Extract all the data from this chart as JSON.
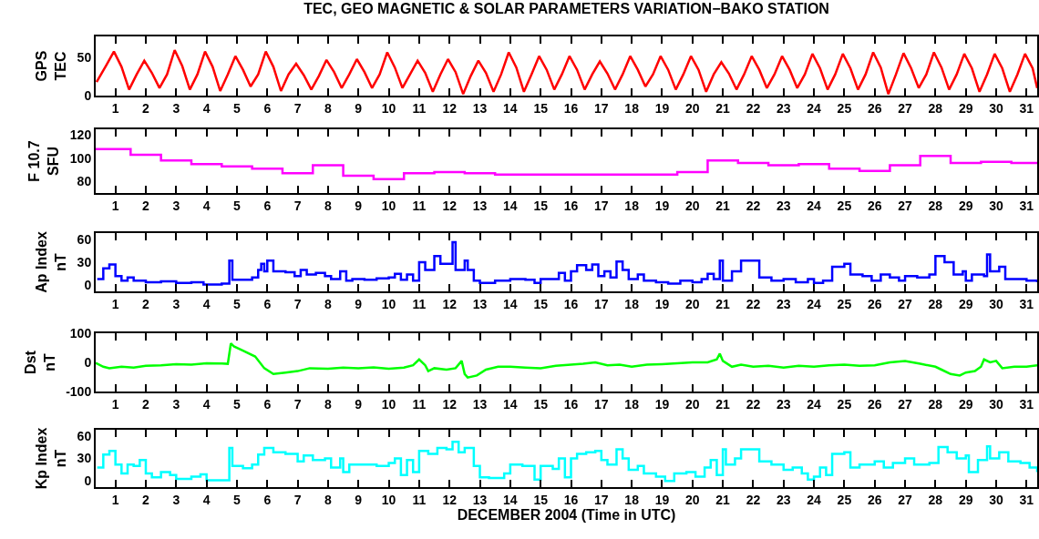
{
  "chart_data": [
    {
      "type": "line",
      "title": "TEC, GEO MAGNETIC & SOLAR PARAMETERS VARIATION−BAKO STATION",
      "ylabel": "GPS\nTEC",
      "xlim": [
        0.35,
        31.35
      ],
      "xticks": [
        1,
        2,
        3,
        4,
        5,
        6,
        7,
        8,
        9,
        10,
        11,
        12,
        13,
        14,
        15,
        16,
        17,
        18,
        19,
        20,
        21,
        22,
        23,
        24,
        25,
        26,
        27,
        28,
        29,
        30,
        31
      ],
      "ylim": [
        0,
        78
      ],
      "yticks": [
        0,
        50
      ],
      "x": [
        0.38,
        0.7,
        0.95,
        1.2,
        1.45,
        1.7,
        1.95,
        2.2,
        2.45,
        2.7,
        2.95,
        3.2,
        3.45,
        3.7,
        3.95,
        4.2,
        4.45,
        4.7,
        4.95,
        5.2,
        5.45,
        5.7,
        5.95,
        6.2,
        6.45,
        6.7,
        6.95,
        7.2,
        7.45,
        7.7,
        7.95,
        8.2,
        8.45,
        8.7,
        8.95,
        9.2,
        9.45,
        9.7,
        9.95,
        10.2,
        10.45,
        10.7,
        10.95,
        11.2,
        11.45,
        11.7,
        11.95,
        12.2,
        12.45,
        12.7,
        12.95,
        13.2,
        13.45,
        13.7,
        13.95,
        14.2,
        14.45,
        14.7,
        14.95,
        15.2,
        15.45,
        15.7,
        15.95,
        16.2,
        16.45,
        16.7,
        16.95,
        17.2,
        17.45,
        17.7,
        17.95,
        18.2,
        18.45,
        18.7,
        18.95,
        19.2,
        19.45,
        19.7,
        19.95,
        20.2,
        20.45,
        20.7,
        20.95,
        21.2,
        21.45,
        21.7,
        21.95,
        22.2,
        22.45,
        22.7,
        22.95,
        23.2,
        23.45,
        23.7,
        23.95,
        24.2,
        24.45,
        24.7,
        24.95,
        25.2,
        25.45,
        25.7,
        25.95,
        26.2,
        26.45,
        26.7,
        26.95,
        27.2,
        27.45,
        27.7,
        27.95,
        28.2,
        28.45,
        28.7,
        28.95,
        29.2,
        29.45,
        29.7,
        29.95,
        30.2,
        30.45,
        30.7,
        30.95,
        31.2,
        31.35
      ],
      "series": [
        {
          "color": "#ff0000",
          "values": [
            18,
            40,
            58,
            38,
            8,
            28,
            46,
            30,
            10,
            28,
            60,
            39,
            8,
            28,
            58,
            38,
            6,
            28,
            52,
            34,
            12,
            28,
            58,
            38,
            6,
            28,
            42,
            27,
            8,
            26,
            47,
            31,
            10,
            28,
            48,
            31,
            10,
            28,
            57,
            37,
            10,
            28,
            46,
            30,
            5,
            28,
            48,
            31,
            2,
            26,
            46,
            30,
            5,
            28,
            57,
            37,
            5,
            28,
            52,
            34,
            8,
            28,
            52,
            34,
            8,
            28,
            45,
            29,
            8,
            28,
            52,
            34,
            12,
            28,
            52,
            34,
            8,
            28,
            52,
            34,
            5,
            28,
            44,
            29,
            8,
            28,
            52,
            34,
            10,
            28,
            52,
            34,
            10,
            28,
            55,
            36,
            8,
            28,
            55,
            36,
            8,
            28,
            57,
            37,
            2,
            28,
            56,
            36,
            10,
            28,
            57,
            37,
            8,
            28,
            55,
            36,
            5,
            28,
            55,
            36,
            5,
            28,
            55,
            36,
            10
          ]
        }
      ]
    },
    {
      "type": "step",
      "ylabel": "F 10.7\nSFU",
      "xlim": [
        0.35,
        31.35
      ],
      "xticks": [
        1,
        2,
        3,
        4,
        5,
        6,
        7,
        8,
        9,
        10,
        11,
        12,
        13,
        14,
        15,
        16,
        17,
        18,
        19,
        20,
        21,
        22,
        23,
        24,
        25,
        26,
        27,
        28,
        29,
        30,
        31
      ],
      "ylim": [
        70,
        125
      ],
      "yticks": [
        80,
        100,
        120
      ],
      "x": [
        0.35,
        1.5,
        2.5,
        3.5,
        4.5,
        5.5,
        6.5,
        7.5,
        8.5,
        9.5,
        10.5,
        11.5,
        12.5,
        13.5,
        14.5,
        15.5,
        16.5,
        17.5,
        18.5,
        19.5,
        20.5,
        21.5,
        22.5,
        23.5,
        24.5,
        25.5,
        26.5,
        27.5,
        28.5,
        29.5,
        30.5,
        31.35
      ],
      "series": [
        {
          "color": "#ff00ff",
          "values": [
            108,
            103,
            98,
            95,
            93,
            91,
            87,
            94,
            85,
            82,
            87,
            88,
            87,
            86,
            86,
            86,
            86,
            86,
            86,
            88,
            98,
            96,
            94,
            95,
            91,
            89,
            94,
            102,
            96,
            97,
            96,
            96
          ]
        }
      ]
    },
    {
      "type": "step",
      "ylabel": "Ap Index\nnT",
      "xlim": [
        0.35,
        31.35
      ],
      "xticks": [
        1,
        2,
        3,
        4,
        5,
        6,
        7,
        8,
        9,
        10,
        11,
        12,
        13,
        14,
        15,
        16,
        17,
        18,
        19,
        20,
        21,
        22,
        23,
        24,
        25,
        26,
        27,
        28,
        29,
        30,
        31
      ],
      "ylim": [
        -8,
        68
      ],
      "yticks": [
        0,
        30,
        60
      ],
      "x": [
        0.4,
        0.6,
        0.8,
        1.0,
        1.2,
        1.4,
        1.6,
        2.0,
        2.5,
        3.0,
        3.5,
        3.9,
        4.5,
        4.75,
        4.85,
        5.2,
        5.5,
        5.7,
        5.8,
        5.9,
        6.0,
        6.2,
        6.6,
        6.9,
        7.1,
        7.3,
        7.6,
        7.9,
        8.1,
        8.4,
        8.6,
        8.8,
        9.2,
        9.6,
        10.0,
        10.2,
        10.4,
        10.6,
        10.8,
        11.0,
        11.2,
        11.5,
        11.7,
        12.0,
        12.1,
        12.2,
        12.5,
        12.6,
        12.8,
        13.0,
        13.5,
        14.0,
        14.5,
        14.8,
        15.0,
        15.4,
        15.6,
        15.8,
        16.0,
        16.2,
        16.5,
        16.7,
        16.9,
        17.1,
        17.3,
        17.5,
        17.7,
        17.9,
        18.2,
        18.4,
        18.8,
        19.2,
        19.6,
        20.0,
        20.3,
        20.5,
        20.7,
        20.9,
        21.0,
        21.3,
        21.6,
        22.0,
        22.2,
        22.6,
        23.0,
        23.4,
        23.8,
        24.0,
        24.3,
        24.6,
        25.0,
        25.2,
        25.6,
        25.9,
        26.2,
        26.5,
        26.8,
        27.0,
        27.4,
        27.8,
        28.0,
        28.3,
        28.6,
        28.9,
        29.0,
        29.2,
        29.6,
        29.7,
        29.8,
        30.1,
        30.3,
        30.7,
        31.0,
        31.35
      ],
      "series": [
        {
          "color": "#0000ff",
          "values": [
            8,
            22,
            27,
            12,
            6,
            10,
            6,
            4,
            5,
            3,
            4,
            1,
            2,
            32,
            7,
            7,
            10,
            20,
            28,
            18,
            32,
            18,
            17,
            12,
            20,
            14,
            16,
            12,
            8,
            18,
            6,
            8,
            7,
            9,
            10,
            15,
            7,
            14,
            6,
            30,
            20,
            38,
            28,
            28,
            56,
            20,
            32,
            20,
            6,
            3,
            6,
            8,
            7,
            3,
            8,
            8,
            16,
            6,
            18,
            26,
            20,
            27,
            12,
            18,
            10,
            31,
            20,
            8,
            14,
            6,
            4,
            2,
            6,
            4,
            8,
            15,
            8,
            32,
            6,
            18,
            32,
            32,
            10,
            6,
            8,
            4,
            8,
            3,
            6,
            24,
            28,
            14,
            12,
            6,
            14,
            10,
            6,
            12,
            10,
            14,
            38,
            30,
            14,
            18,
            6,
            14,
            12,
            40,
            18,
            24,
            8,
            8,
            6,
            4
          ]
        }
      ]
    },
    {
      "type": "line",
      "ylabel": "Dst\nnT",
      "xlim": [
        0.35,
        31.35
      ],
      "xticks": [
        1,
        2,
        3,
        4,
        5,
        6,
        7,
        8,
        9,
        10,
        11,
        12,
        13,
        14,
        15,
        16,
        17,
        18,
        19,
        20,
        21,
        22,
        23,
        24,
        25,
        26,
        27,
        28,
        29,
        30,
        31
      ],
      "ylim": [
        -100,
        100
      ],
      "yticks": [
        -100,
        0,
        100
      ],
      "x": [
        0.35,
        0.6,
        0.8,
        1.2,
        1.6,
        2.0,
        2.5,
        3.0,
        3.5,
        4.0,
        4.5,
        4.7,
        4.8,
        4.9,
        5.2,
        5.6,
        5.9,
        6.2,
        6.6,
        7.0,
        7.4,
        8.0,
        8.5,
        9.0,
        9.5,
        10.0,
        10.5,
        10.8,
        11.0,
        11.2,
        11.3,
        11.5,
        11.9,
        12.2,
        12.4,
        12.5,
        12.6,
        12.9,
        13.2,
        13.6,
        14.0,
        14.5,
        15.0,
        15.5,
        16.0,
        16.4,
        16.8,
        17.2,
        17.6,
        18.0,
        18.5,
        19.0,
        19.5,
        20.0,
        20.5,
        20.8,
        20.9,
        21.0,
        21.3,
        21.6,
        22.0,
        22.5,
        23.0,
        23.5,
        24.0,
        24.5,
        25.0,
        25.5,
        26.0,
        26.5,
        27.0,
        27.5,
        28.0,
        28.2,
        28.5,
        28.8,
        29.0,
        29.3,
        29.5,
        29.6,
        29.8,
        30.0,
        30.2,
        30.6,
        31.0,
        31.35
      ],
      "series": [
        {
          "color": "#00ff00",
          "values": [
            -2,
            -15,
            -20,
            -15,
            -18,
            -12,
            -10,
            -6,
            -8,
            -3,
            -4,
            -5,
            65,
            55,
            40,
            20,
            -20,
            -40,
            -35,
            -30,
            -20,
            -22,
            -18,
            -20,
            -17,
            -22,
            -18,
            -10,
            10,
            -10,
            -30,
            -20,
            -25,
            -20,
            5,
            -40,
            -52,
            -45,
            -25,
            -15,
            -15,
            -18,
            -20,
            -12,
            -8,
            -5,
            0,
            -10,
            -8,
            -15,
            -8,
            -6,
            -3,
            0,
            0,
            10,
            30,
            5,
            -15,
            -8,
            -15,
            -12,
            -18,
            -12,
            -15,
            -10,
            -8,
            -12,
            -10,
            0,
            5,
            -5,
            -15,
            -25,
            -40,
            -45,
            -35,
            -30,
            -15,
            10,
            0,
            5,
            -20,
            -15,
            -15,
            -10
          ]
        }
      ]
    },
    {
      "type": "step",
      "ylabel": "Kp Index\nnT",
      "xlabel": "DECEMBER 2004 (Time in UTC)",
      "xlim": [
        0.35,
        31.35
      ],
      "xticks": [
        1,
        2,
        3,
        4,
        5,
        6,
        7,
        8,
        9,
        10,
        11,
        12,
        13,
        14,
        15,
        16,
        17,
        18,
        19,
        20,
        21,
        22,
        23,
        24,
        25,
        26,
        27,
        28,
        29,
        30,
        31
      ],
      "ylim": [
        -8,
        68
      ],
      "yticks": [
        0,
        30,
        60
      ],
      "x": [
        0.4,
        0.6,
        0.8,
        1.0,
        1.2,
        1.4,
        1.6,
        1.8,
        2.0,
        2.2,
        2.5,
        2.8,
        3.0,
        3.5,
        3.8,
        4.0,
        4.6,
        4.75,
        4.85,
        5.2,
        5.5,
        5.7,
        5.9,
        6.2,
        6.6,
        7.0,
        7.2,
        7.5,
        7.9,
        8.1,
        8.4,
        8.5,
        8.7,
        9.2,
        9.6,
        10.0,
        10.2,
        10.4,
        10.6,
        10.8,
        11.0,
        11.3,
        11.6,
        11.9,
        12.1,
        12.3,
        12.5,
        12.8,
        13.0,
        13.3,
        13.8,
        14.0,
        14.4,
        14.8,
        15.0,
        15.4,
        15.6,
        15.8,
        16.0,
        16.2,
        16.5,
        16.8,
        17.0,
        17.2,
        17.5,
        17.7,
        17.9,
        18.2,
        18.4,
        18.8,
        19.1,
        19.4,
        19.8,
        20.1,
        20.4,
        20.6,
        20.8,
        21.0,
        21.1,
        21.4,
        21.6,
        22.0,
        22.2,
        22.6,
        23.0,
        23.3,
        23.6,
        23.8,
        24.0,
        24.2,
        24.4,
        24.6,
        25.0,
        25.2,
        25.5,
        26.0,
        26.3,
        26.6,
        27.0,
        27.3,
        27.8,
        28.1,
        28.4,
        28.7,
        29.0,
        29.1,
        29.4,
        29.7,
        29.8,
        30.1,
        30.4,
        30.8,
        31.1,
        31.35
      ],
      "series": [
        {
          "color": "#00ffff",
          "values": [
            18,
            35,
            40,
            22,
            10,
            22,
            20,
            28,
            10,
            5,
            12,
            8,
            3,
            6,
            9,
            1,
            1,
            44,
            20,
            17,
            22,
            35,
            44,
            38,
            36,
            26,
            34,
            28,
            30,
            18,
            30,
            12,
            22,
            22,
            20,
            24,
            30,
            8,
            28,
            12,
            40,
            36,
            44,
            42,
            52,
            38,
            44,
            20,
            5,
            4,
            10,
            22,
            20,
            2,
            20,
            16,
            30,
            5,
            30,
            36,
            38,
            40,
            28,
            22,
            42,
            30,
            15,
            20,
            10,
            6,
            0,
            10,
            12,
            6,
            18,
            28,
            8,
            42,
            22,
            30,
            42,
            42,
            26,
            22,
            15,
            18,
            10,
            2,
            6,
            18,
            8,
            36,
            38,
            18,
            22,
            26,
            18,
            24,
            30,
            22,
            24,
            45,
            38,
            30,
            34,
            12,
            28,
            46,
            30,
            38,
            26,
            24,
            18,
            12
          ]
        }
      ]
    }
  ]
}
